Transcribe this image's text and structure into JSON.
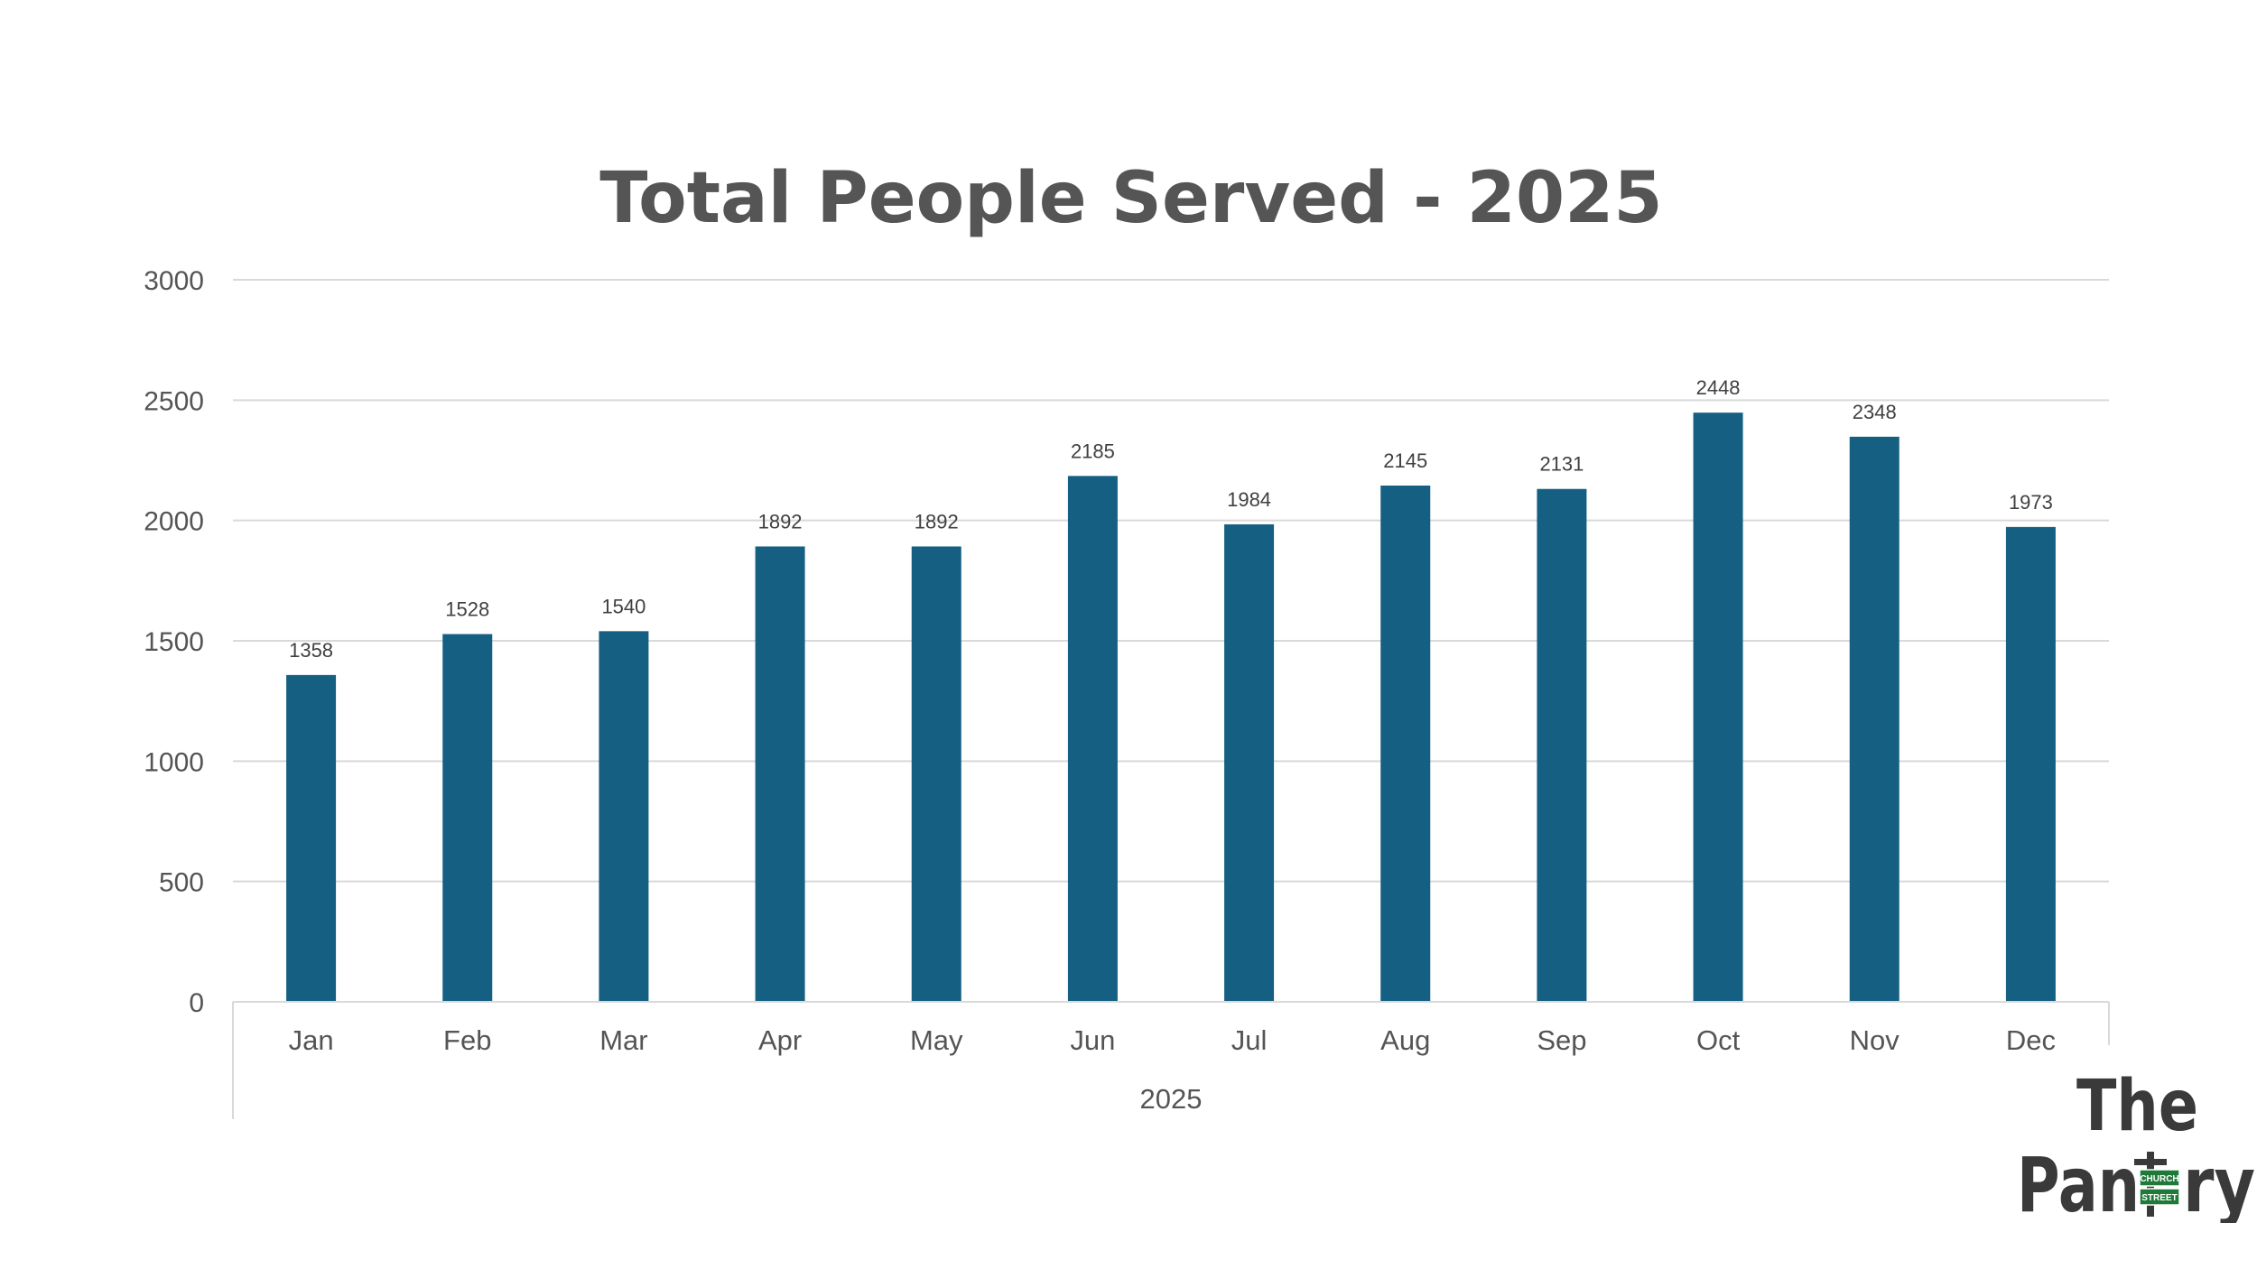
{
  "chart_data": {
    "type": "bar",
    "title": "Total People Served - 2025",
    "xlabel": "",
    "ylabel": "",
    "categories": [
      "Jan",
      "Feb",
      "Mar",
      "Apr",
      "May",
      "Jun",
      "Jul",
      "Aug",
      "Sep",
      "Oct",
      "Nov",
      "Dec"
    ],
    "group_label": "2025",
    "values": [
      1358,
      1528,
      1540,
      1892,
      1892,
      2185,
      1984,
      2145,
      2131,
      2448,
      2348,
      1973
    ],
    "ylim": [
      0,
      3000
    ],
    "yticks": [
      0,
      500,
      1000,
      1500,
      2000,
      2500,
      3000
    ],
    "grid": true,
    "legend": "none",
    "data_labels": true,
    "colors": {
      "bar": "#156082",
      "grid": "#d9d9d9",
      "text": "#555555"
    }
  },
  "logo": {
    "line1": "The",
    "line2a": "Pan",
    "line2b": "ry",
    "mark_top": "CHURCH",
    "mark_bottom": "STREET",
    "mark_color": "#1f7a3a"
  }
}
